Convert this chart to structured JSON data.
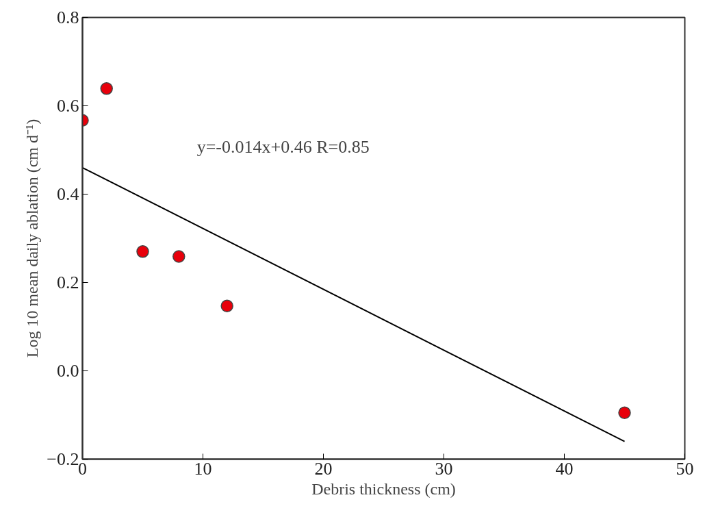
{
  "chart_data": {
    "type": "scatter",
    "xlabel": "Debris thickness (cm)",
    "ylabel": "Log 10 mean daily ablation (cm d⁻¹)",
    "xlim": [
      0,
      50
    ],
    "ylim": [
      -0.2,
      0.8
    ],
    "xticks": [
      0,
      10,
      20,
      30,
      40,
      50
    ],
    "yticks": [
      {
        "value": -0.2,
        "label": "−0.2"
      },
      {
        "value": 0.0,
        "label": "0.0"
      },
      0.2,
      0.4,
      0.6,
      0.8
    ],
    "grid": false,
    "series": [
      {
        "marker": "circle",
        "color": "#e8000b",
        "x": [
          0,
          2,
          5,
          8,
          12,
          45
        ],
        "values": [
          0.567,
          0.639,
          0.27,
          0.259,
          0.147,
          -0.095
        ]
      },
      {
        "type": "line",
        "color": "#000000",
        "x": [
          0,
          45
        ],
        "values": [
          0.46,
          -0.16
        ],
        "line_style": "solid"
      }
    ],
    "annotations": [
      "y=-0.014x+0.46    R=0.85"
    ]
  }
}
